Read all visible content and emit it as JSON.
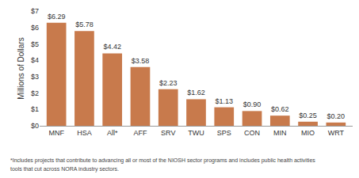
{
  "chart_data": {
    "type": "bar",
    "y_label": "Millions of Dollars",
    "categories": [
      "MNF",
      "HSA",
      "All*",
      "AFF",
      "SRV",
      "TWU",
      "SPS",
      "CON",
      "MIN",
      "MIO",
      "WRT"
    ],
    "values": [
      6.29,
      5.78,
      4.42,
      3.58,
      2.23,
      1.62,
      1.13,
      0.9,
      0.62,
      0.25,
      0.2
    ],
    "value_labels": [
      "$6.29",
      "$5.78",
      "$4.42",
      "$3.58",
      "$2.23",
      "$1.62",
      "$1.13",
      "$0.90",
      "$0.62",
      "$0.25",
      "$0.20"
    ],
    "data_labels": true,
    "color": "#c87a4c",
    "ylim": [
      0,
      7
    ],
    "yticks": [
      {
        "value": 0,
        "label": "$0"
      },
      {
        "value": 1,
        "label": "$1"
      },
      {
        "value": 2,
        "label": "$2"
      },
      {
        "value": 3,
        "label": "$3"
      },
      {
        "value": 4,
        "label": "$4"
      },
      {
        "value": 5,
        "label": "$5"
      },
      {
        "value": 6,
        "label": "$6"
      },
      {
        "value": 7,
        "label": "$7"
      }
    ],
    "grid": false,
    "annotations": [
      "*Includes projects that contribute to advancing all or most of the NIOSH sector programs and includes public health activities",
      "tools that cut across NORA industry sectors."
    ]
  }
}
